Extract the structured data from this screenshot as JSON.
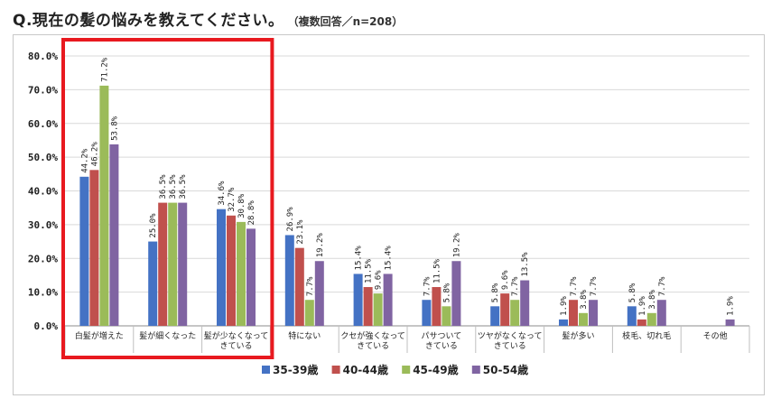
{
  "title": "Q.現在の髪の悩みを教えてください。",
  "subtitle": "（複数回答／n=208）",
  "highlight_color": "#e8191f",
  "chart_data": {
    "type": "bar",
    "ylim": [
      0,
      80
    ],
    "y_ticks": [
      "0.0%",
      "10.0%",
      "20.0%",
      "30.0%",
      "40.0%",
      "50.0%",
      "60.0%",
      "70.0%",
      "80.0%"
    ],
    "grid": true,
    "legend_position": "bottom",
    "categories": [
      [
        "白髪が増えた"
      ],
      [
        "髪が細くなった"
      ],
      [
        "髪が少なくなって",
        "きている"
      ],
      [
        "特にない"
      ],
      [
        "クセが強くなって",
        "きている"
      ],
      [
        "パサついて",
        "きている"
      ],
      [
        "ツヤがなくなって",
        "きている"
      ],
      [
        "髪が多い"
      ],
      [
        "枝毛、切れ毛"
      ],
      [
        "その他"
      ]
    ],
    "series": [
      {
        "name": "35-39歳",
        "color": "#4472c4",
        "values": [
          44.2,
          25.0,
          34.6,
          26.9,
          15.4,
          7.7,
          5.8,
          1.9,
          5.8,
          0
        ],
        "labels": [
          "44.2%",
          "25.0%",
          "34.6%",
          "26.9%",
          "15.4%",
          "7.7%",
          "5.8%",
          "1.9%",
          "5.8%",
          ""
        ]
      },
      {
        "name": "40-44歳",
        "color": "#c0504d",
        "values": [
          46.2,
          36.5,
          32.7,
          23.1,
          11.5,
          11.5,
          9.6,
          7.7,
          1.9,
          0
        ],
        "labels": [
          "46.2%",
          "36.5%",
          "32.7%",
          "23.1%",
          "11.5%",
          "11.5%",
          "9.6%",
          "7.7%",
          "1.9%",
          ""
        ]
      },
      {
        "name": "45-49歳",
        "color": "#9bbb59",
        "values": [
          71.2,
          36.5,
          30.8,
          7.7,
          9.6,
          5.8,
          7.7,
          3.8,
          3.8,
          0
        ],
        "labels": [
          "71.2%",
          "36.5%",
          "30.8%",
          "7.7%",
          "9.6%",
          "5.8%",
          "7.7%",
          "3.8%",
          "3.8%",
          ""
        ]
      },
      {
        "name": "50-54歳",
        "color": "#8064a2",
        "values": [
          53.8,
          36.5,
          28.8,
          19.2,
          15.4,
          19.2,
          13.5,
          7.7,
          7.7,
          1.9
        ],
        "labels": [
          "53.8%",
          "36.5%",
          "28.8%",
          "19.2%",
          "15.4%",
          "19.2%",
          "13.5%",
          "7.7%",
          "7.7%",
          "1.9%"
        ]
      }
    ],
    "highlighted_categories": [
      0,
      1,
      2
    ]
  }
}
